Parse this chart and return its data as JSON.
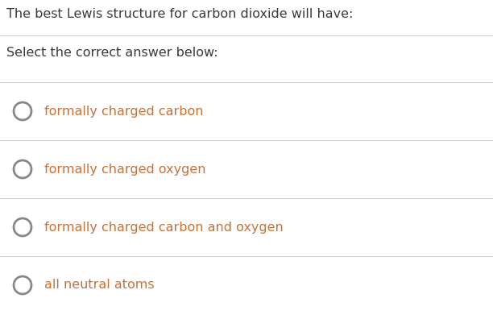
{
  "title": "The best Lewis structure for carbon dioxide will have:",
  "subtitle": "Select the correct answer below:",
  "options": [
    "formally charged carbon",
    "formally charged oxygen",
    "formally charged carbon and oxygen",
    "all neutral atoms"
  ],
  "bg_color": "#ffffff",
  "title_color": "#3a3a3a",
  "subtitle_color": "#3a3a3a",
  "option_color": "#c87137",
  "circle_color": "#888888",
  "line_color": "#d0d0d0",
  "title_fontsize": 11.5,
  "subtitle_fontsize": 11.5,
  "option_fontsize": 11.5,
  "fig_width": 6.12,
  "fig_height": 3.91,
  "dpi": 100
}
